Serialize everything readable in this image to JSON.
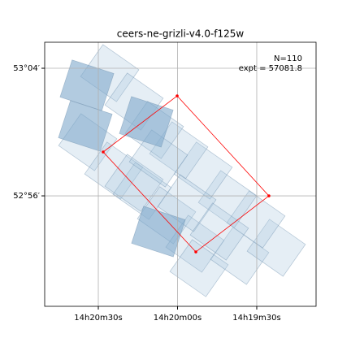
{
  "chart_data": {
    "type": "footprint",
    "title": "ceers-ne-grizli-v4.0-f125w",
    "annotations": [
      "N=110",
      "expt = 57081.8"
    ],
    "xlim": [
      215.2096,
      214.7814
    ],
    "ylim": [
      52.8178,
      53.0939
    ],
    "xticks": [
      {
        "value": 215.125,
        "label": "14h20m30s"
      },
      {
        "value": 215.0,
        "label": "14h20m00s"
      },
      {
        "value": 214.875,
        "label": "14h19m30s"
      }
    ],
    "yticks": [
      {
        "value": 52.9333,
        "label": "52°56′"
      },
      {
        "value": 53.0667,
        "label": "53°04′"
      }
    ],
    "grid": true,
    "tiles": [
      {
        "color": "#a8c6dd",
        "x": [
          215.107,
          215.0686,
          215.1417,
          215.1006,
          215.0558,
          215.0173,
          214.9724,
          214.966,
          214.9019,
          214.8442,
          214.8763,
          214.9211,
          214.9596,
          214.9981,
          215.0365,
          215.0686,
          214.9852,
          214.934,
          215.0301
        ],
        "y": [
          53.0616,
          53.0319,
          52.9894,
          52.9597,
          52.9384,
          52.913,
          52.8832,
          52.8577,
          52.8705,
          52.879,
          52.9087,
          52.9299,
          52.9597,
          52.9809,
          53.0022,
          52.9469,
          52.9257,
          52.896,
          52.9724
        ]
      },
      {
        "color": "#7fa9cc",
        "x": [
          215.1429,
          215.1455,
          215.0493,
          215.0301
        ],
        "y": [
          53.0489,
          53.0064,
          53.0107,
          52.896
        ]
      }
    ],
    "outline": {
      "color": "#ff0000",
      "x": [
        215.0006,
        214.8558,
        214.9711,
        215.1173
      ],
      "y": [
        53.0378,
        52.9333,
        52.8747,
        52.9792
      ]
    }
  }
}
